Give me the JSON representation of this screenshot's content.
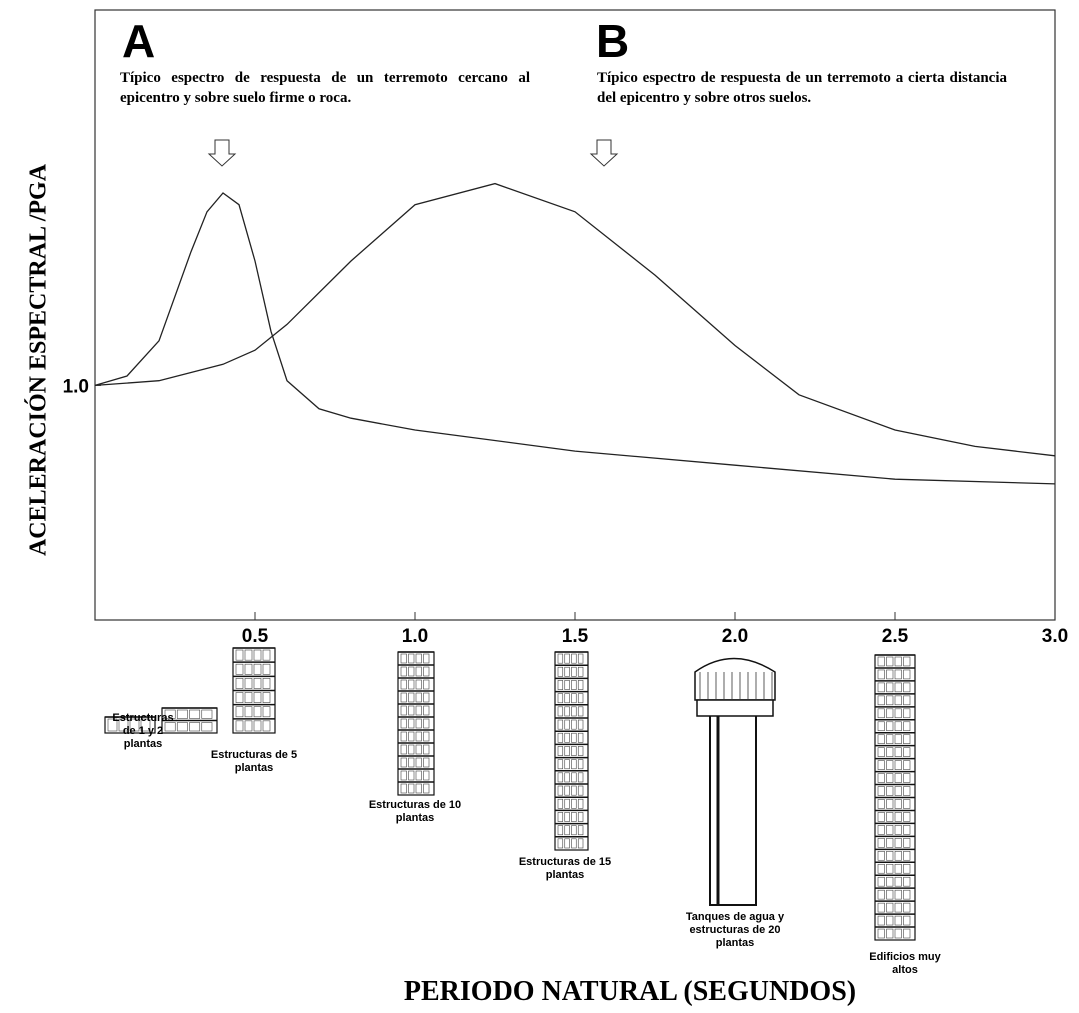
{
  "chart_data": {
    "type": "line",
    "y_label": "ACELERACIÓN ESPECTRAL /PGA",
    "x_label": "PERIODO NATURAL (SEGUNDOS)",
    "xlim": [
      0,
      3
    ],
    "ylim": [
      0,
      2.6
    ],
    "xticks": [
      0.5,
      {
        "value": 1,
        "label": "1.0"
      },
      1.5,
      {
        "value": 2,
        "label": "2.0"
      },
      2.5,
      {
        "value": 3,
        "label": "3.0"
      }
    ],
    "yticks": [
      {
        "value": 1,
        "label": "1.0"
      }
    ],
    "series": [
      {
        "name": "A",
        "color": "#222222",
        "x": [
          0,
          0.1,
          0.2,
          0.3,
          0.35,
          0.4,
          0.45,
          0.5,
          0.55,
          0.6,
          0.7,
          0.8,
          1.0,
          1.5,
          2.0,
          2.5,
          3.0
        ],
        "values": [
          1.0,
          1.04,
          1.19,
          1.57,
          1.74,
          1.82,
          1.77,
          1.53,
          1.23,
          1.02,
          0.9,
          0.86,
          0.81,
          0.72,
          0.66,
          0.6,
          0.58
        ]
      },
      {
        "name": "B",
        "color": "#222222",
        "x": [
          0,
          0.2,
          0.4,
          0.5,
          0.6,
          0.8,
          1.0,
          1.25,
          1.5,
          1.75,
          2.0,
          2.2,
          2.5,
          2.75,
          3.0
        ],
        "values": [
          1.0,
          1.02,
          1.09,
          1.15,
          1.26,
          1.53,
          1.77,
          1.86,
          1.74,
          1.47,
          1.17,
          0.96,
          0.81,
          0.74,
          0.7
        ]
      }
    ],
    "annotations": [
      {
        "title": "A",
        "text": "Típico espectro de respuesta de un terremoto cercano al epicentro y sobre suelo firme o roca."
      },
      {
        "title": "B",
        "text": "Típico espectro de respuesta de un terremoto a cierta distancia del epicentro y sobre otros suelos."
      }
    ],
    "structures": [
      "Estructuras de 1 y 2 plantas",
      "Estructuras de 5 plantas",
      "Estructuras de 10 plantas",
      "Estructuras de 15 plantas",
      "Tanques de agua y estructuras de 20 plantas",
      "Edificios muy altos"
    ]
  }
}
